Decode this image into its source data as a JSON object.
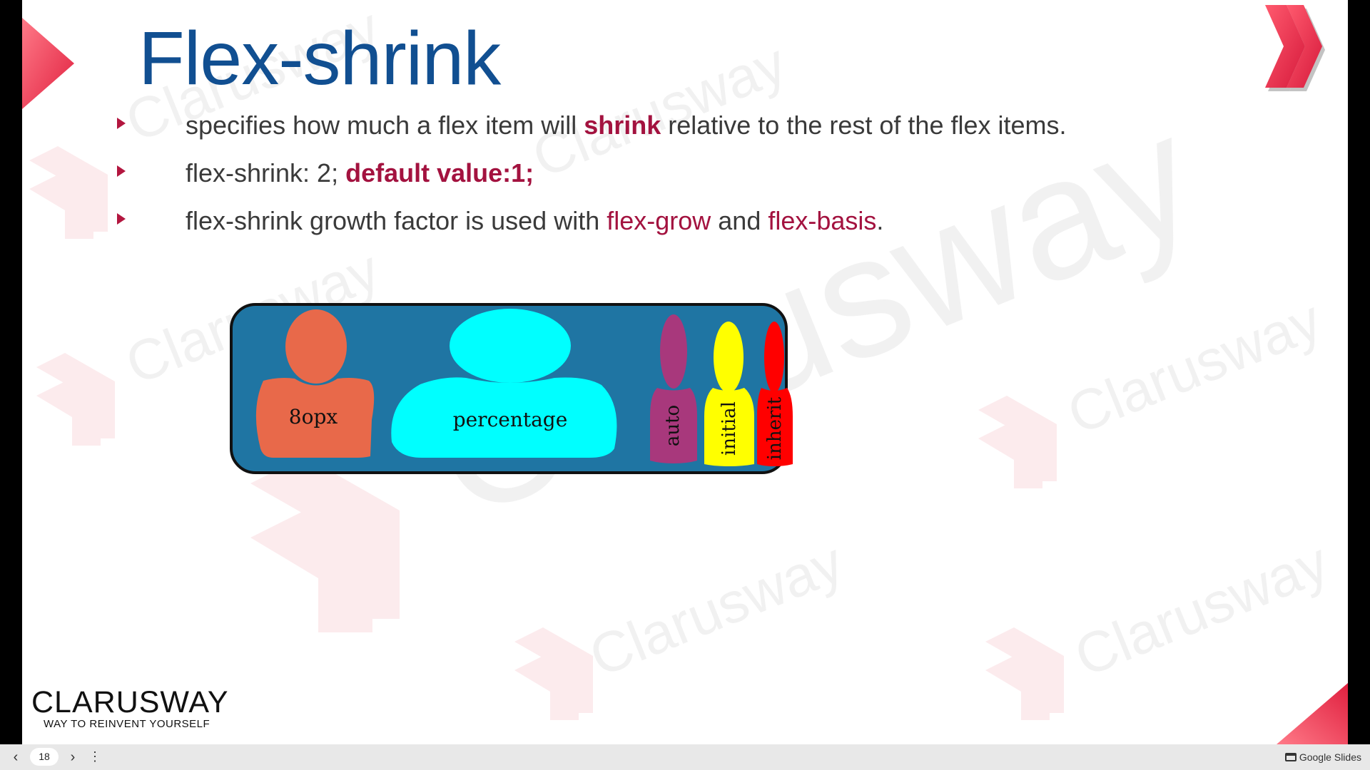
{
  "slide": {
    "title": "Flex-shrink",
    "watermark_text": "Clarusway",
    "bullets": [
      {
        "parts": [
          {
            "text": "specifies how much a flex item will ",
            "style": "plain"
          },
          {
            "text": "shrink",
            "style": "red-bold"
          },
          {
            "text": " relative to the rest of the flex items.",
            "style": "plain"
          }
        ]
      },
      {
        "parts": [
          {
            "text": "flex-shrink: 2; ",
            "style": "plain"
          },
          {
            "text": "default value:1;",
            "style": "red-bold"
          }
        ]
      },
      {
        "parts": [
          {
            "text": "flex-shrink growth factor is used with ",
            "style": "plain"
          },
          {
            "text": "flex-grow",
            "style": "red"
          },
          {
            "text": " and ",
            "style": "plain"
          },
          {
            "text": "flex-basis",
            "style": "red"
          },
          {
            "text": ".",
            "style": "plain"
          }
        ]
      }
    ],
    "diagram": {
      "container_color": "#1f75a3",
      "items": [
        {
          "label": "8opx",
          "color": "#e8694a"
        },
        {
          "label": "percentage",
          "color": "#00ffff"
        },
        {
          "label": "auto",
          "color": "#a8387c"
        },
        {
          "label": "initial",
          "color": "#ffff00"
        },
        {
          "label": "inherit",
          "color": "#ff0000"
        }
      ]
    },
    "brand": {
      "name": "CLARUSWAY",
      "tagline": "WAY TO REINVENT YOURSELF"
    },
    "accent_color": "#e8344e"
  },
  "bottom_bar": {
    "prev_icon": "chevron-left-icon",
    "next_icon": "chevron-right-icon",
    "more_icon": "more-vert-icon",
    "page_number": "18",
    "app_label": "Google Slides",
    "app_icon": "presentation-icon"
  }
}
